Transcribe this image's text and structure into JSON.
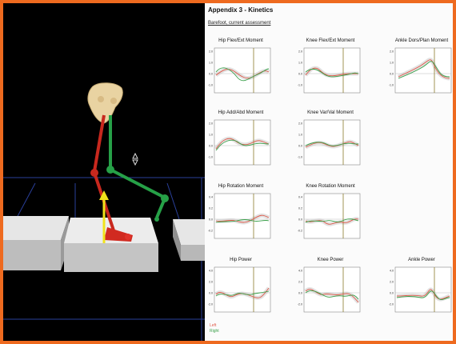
{
  "report": {
    "title": "Appendix 3 - Kinetics",
    "subtitle": "Barefoot, current assessment",
    "panels": [
      {
        "title": "Hip Flex/Ext Moment",
        "ticks": [
          "2.0",
          "1.0",
          "0.0",
          "-1.0"
        ]
      },
      {
        "title": "Knee Flex/Ext Moment",
        "ticks": [
          "2.0",
          "1.0",
          "0.0",
          "-1.0"
        ]
      },
      {
        "title": "Ankle Dors/Plan Moment",
        "ticks": [
          "2.0",
          "1.0",
          "0.0",
          "-1.0"
        ]
      },
      {
        "title": "Hip Add/Abd Moment",
        "ticks": [
          "2.0",
          "1.0",
          "0.0",
          "-1.0"
        ]
      },
      {
        "title": "Knee Var/Val Moment",
        "ticks": [
          "2.0",
          "1.0",
          "0.0",
          "-1.0"
        ]
      },
      {
        "title": "Hip Rotation Moment",
        "ticks": [
          "0.4",
          "0.2",
          "0.0",
          "-0.2"
        ]
      },
      {
        "title": "Knee Rotation Moment",
        "ticks": [
          "0.4",
          "0.2",
          "0.0",
          "-0.2"
        ]
      },
      {
        "title": "Hip Power",
        "ticks": [
          "4.0",
          "2.0",
          "0.0",
          "-2.0"
        ]
      },
      {
        "title": "Knee Power",
        "ticks": [
          "4.0",
          "2.0",
          "0.0",
          "-2.0"
        ]
      },
      {
        "title": "Ankle Power",
        "ticks": [
          "4.0",
          "2.0",
          "0.0",
          "-2.0"
        ]
      }
    ],
    "legend": {
      "left": "Left",
      "right": "Right"
    }
  },
  "colors": {
    "frame_border": "#ee6a1f",
    "left_series": "#e05a4a",
    "right_series": "#3aa04a",
    "normal_band": "#cfcfcf",
    "toe_off_line": "#8a7a2a"
  },
  "icons": {
    "cursor": "move-cursor-icon"
  }
}
